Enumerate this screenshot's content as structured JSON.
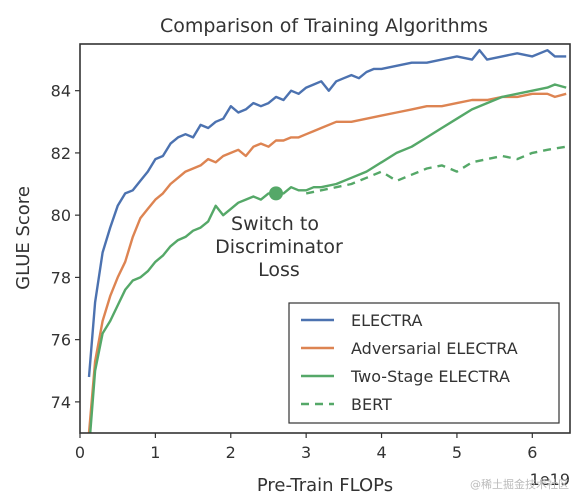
{
  "chart_data": {
    "type": "line",
    "title": "Comparison of Training Algorithms",
    "xlabel": "Pre-Train FLOPs",
    "ylabel": "GLUE Score",
    "x_offset_label": "1e19",
    "xlim": [
      0,
      6.5
    ],
    "ylim": [
      73,
      85.5
    ],
    "xticks": [
      0,
      1,
      2,
      3,
      4,
      5,
      6
    ],
    "yticks": [
      74,
      76,
      78,
      80,
      82,
      84
    ],
    "grid": false,
    "legend_position": "lower-right",
    "annotation": {
      "lines": [
        "Switch to",
        "Discriminator",
        "Loss"
      ],
      "point": [
        2.6,
        80.7
      ]
    },
    "series": [
      {
        "name": "ELECTRA",
        "color": "#4c72b0",
        "style": "solid",
        "x": [
          0.12,
          0.2,
          0.3,
          0.4,
          0.5,
          0.6,
          0.7,
          0.8,
          0.9,
          1.0,
          1.1,
          1.2,
          1.3,
          1.4,
          1.5,
          1.6,
          1.7,
          1.8,
          1.9,
          2.0,
          2.1,
          2.2,
          2.3,
          2.4,
          2.5,
          2.6,
          2.7,
          2.8,
          2.9,
          3.0,
          3.1,
          3.2,
          3.3,
          3.4,
          3.5,
          3.6,
          3.7,
          3.8,
          3.9,
          4.0,
          4.2,
          4.4,
          4.6,
          4.8,
          5.0,
          5.2,
          5.3,
          5.4,
          5.6,
          5.8,
          6.0,
          6.2,
          6.3,
          6.45
        ],
        "y": [
          74.8,
          77.2,
          78.8,
          79.6,
          80.3,
          80.7,
          80.8,
          81.1,
          81.4,
          81.8,
          81.9,
          82.3,
          82.5,
          82.6,
          82.5,
          82.9,
          82.8,
          83.0,
          83.1,
          83.5,
          83.3,
          83.4,
          83.6,
          83.5,
          83.6,
          83.8,
          83.7,
          84.0,
          83.9,
          84.1,
          84.2,
          84.3,
          84.0,
          84.3,
          84.4,
          84.5,
          84.4,
          84.6,
          84.7,
          84.7,
          84.8,
          84.9,
          84.9,
          85.0,
          85.1,
          85.0,
          85.3,
          85.0,
          85.1,
          85.2,
          85.1,
          85.3,
          85.1,
          85.1
        ]
      },
      {
        "name": "Adversarial ELECTRA",
        "color": "#dd8452",
        "style": "solid",
        "x": [
          0.12,
          0.2,
          0.3,
          0.4,
          0.5,
          0.6,
          0.7,
          0.8,
          0.9,
          1.0,
          1.1,
          1.2,
          1.3,
          1.4,
          1.5,
          1.6,
          1.7,
          1.8,
          1.9,
          2.0,
          2.1,
          2.2,
          2.3,
          2.4,
          2.5,
          2.6,
          2.7,
          2.8,
          2.9,
          3.0,
          3.1,
          3.2,
          3.4,
          3.6,
          3.8,
          4.0,
          4.2,
          4.4,
          4.6,
          4.8,
          5.0,
          5.2,
          5.4,
          5.6,
          5.8,
          6.0,
          6.2,
          6.3,
          6.45
        ],
        "y": [
          73.0,
          75.3,
          76.6,
          77.4,
          78.0,
          78.5,
          79.3,
          79.9,
          80.2,
          80.5,
          80.7,
          81.0,
          81.2,
          81.4,
          81.5,
          81.6,
          81.8,
          81.7,
          81.9,
          82.0,
          82.1,
          81.9,
          82.2,
          82.3,
          82.2,
          82.4,
          82.4,
          82.5,
          82.5,
          82.6,
          82.7,
          82.8,
          83.0,
          83.0,
          83.1,
          83.2,
          83.3,
          83.4,
          83.5,
          83.5,
          83.6,
          83.7,
          83.7,
          83.8,
          83.8,
          83.9,
          83.9,
          83.8,
          83.9
        ]
      },
      {
        "name": "Two-Stage ELECTRA",
        "color": "#55a868",
        "style": "solid",
        "x": [
          0.12,
          0.2,
          0.3,
          0.4,
          0.5,
          0.6,
          0.7,
          0.8,
          0.9,
          1.0,
          1.1,
          1.2,
          1.3,
          1.4,
          1.5,
          1.6,
          1.7,
          1.8,
          1.9,
          2.0,
          2.1,
          2.2,
          2.3,
          2.4,
          2.5,
          2.6,
          2.7,
          2.8,
          2.9,
          3.0,
          3.1,
          3.2,
          3.4,
          3.6,
          3.8,
          4.0,
          4.2,
          4.4,
          4.6,
          4.8,
          5.0,
          5.2,
          5.4,
          5.6,
          5.8,
          6.0,
          6.2,
          6.3,
          6.45
        ],
        "y": [
          72.5,
          75.0,
          76.2,
          76.6,
          77.1,
          77.6,
          77.9,
          78.0,
          78.2,
          78.5,
          78.7,
          79.0,
          79.2,
          79.3,
          79.5,
          79.6,
          79.8,
          80.3,
          80.0,
          80.2,
          80.4,
          80.5,
          80.6,
          80.5,
          80.7,
          80.7,
          80.7,
          80.9,
          80.8,
          80.8,
          80.9,
          80.9,
          81.0,
          81.2,
          81.4,
          81.7,
          82.0,
          82.2,
          82.5,
          82.8,
          83.1,
          83.4,
          83.6,
          83.8,
          83.9,
          84.0,
          84.1,
          84.2,
          84.1
        ]
      },
      {
        "name": "BERT",
        "color": "#55a868",
        "style": "dashed",
        "x": [
          3.0,
          3.2,
          3.4,
          3.6,
          3.8,
          4.0,
          4.2,
          4.4,
          4.6,
          4.8,
          5.0,
          5.2,
          5.4,
          5.6,
          5.8,
          6.0,
          6.2,
          6.45
        ],
        "y": [
          80.7,
          80.8,
          80.9,
          81.0,
          81.2,
          81.4,
          81.1,
          81.3,
          81.5,
          81.6,
          81.4,
          81.7,
          81.8,
          81.9,
          81.8,
          82.0,
          82.1,
          82.2
        ]
      }
    ]
  },
  "watermark": "@稀土掘金技术社区"
}
